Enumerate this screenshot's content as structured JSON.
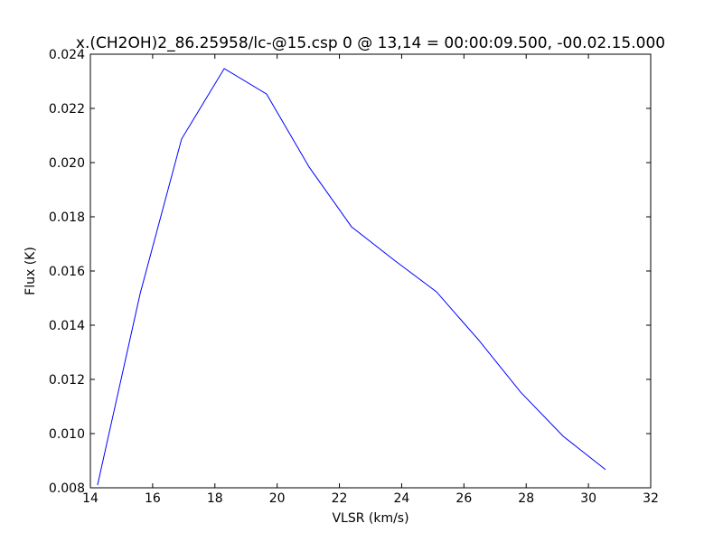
{
  "chart_data": {
    "type": "line",
    "title": "x.(CH2OH)2_86.25958/lc-@15.csp 0 @ 13,14 = 00:00:09.500, -00.02.15.000",
    "xlabel": "VLSR (km/s)",
    "ylabel": "Flux (K)",
    "x": [
      14.23,
      15.6,
      16.93,
      18.3,
      19.66,
      21.03,
      22.39,
      23.76,
      25.12,
      26.49,
      27.82,
      29.19,
      30.55
    ],
    "series": [
      {
        "color": "#0000ff",
        "values": [
          0.0081,
          0.01517,
          0.02087,
          0.02347,
          0.02253,
          0.01983,
          0.01763,
          0.0164,
          0.01523,
          0.01343,
          0.01153,
          0.0099,
          0.00867
        ]
      }
    ],
    "xlim": [
      14,
      32
    ],
    "xticks": [
      14,
      16,
      18,
      20,
      22,
      24,
      26,
      28,
      30,
      32
    ],
    "ylim": [
      0.008,
      0.024
    ],
    "yticks": [
      0.008,
      {
        "value": 0.01,
        "label": "0.010"
      },
      0.012,
      0.014,
      0.016,
      0.018,
      {
        "value": 0.02,
        "label": "0.020"
      },
      0.022,
      0.024
    ],
    "grid": false
  }
}
